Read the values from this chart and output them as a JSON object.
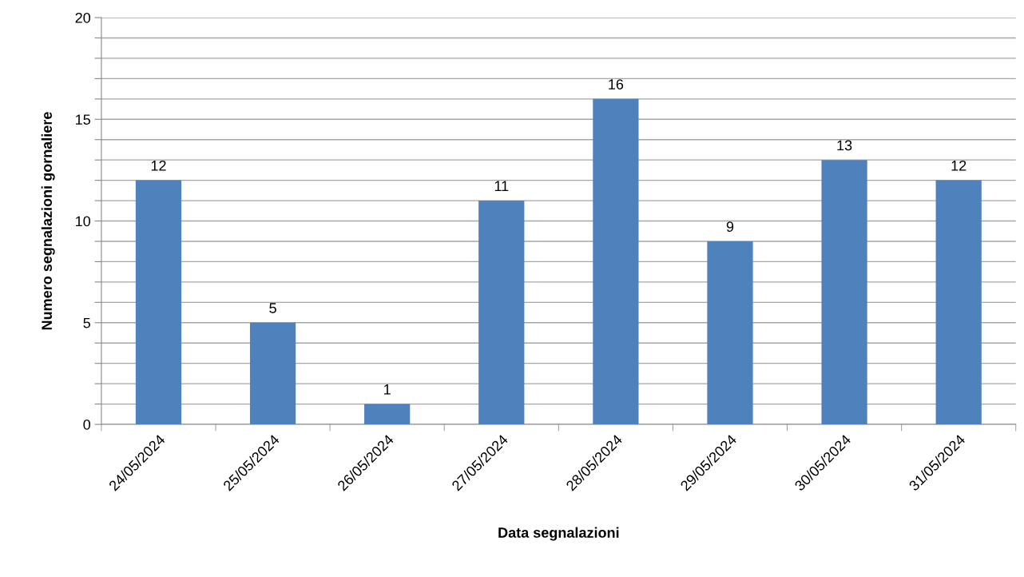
{
  "chart_data": {
    "type": "bar",
    "xlabel": "Data segnalazioni",
    "ylabel": "Numero segnalazioni gornaliere",
    "categories": [
      "24/05/2024",
      "25/05/2024",
      "26/05/2024",
      "27/05/2024",
      "28/05/2024",
      "29/05/2024",
      "30/05/2024",
      "31/05/2024"
    ],
    "values": [
      12,
      5,
      1,
      11,
      16,
      9,
      13,
      12
    ],
    "color": "#4f81bd",
    "ylim": [
      0,
      20
    ],
    "yticks": [
      0,
      {
        "value": 1,
        "label": null
      },
      {
        "value": 2,
        "label": null
      },
      {
        "value": 3,
        "label": null
      },
      {
        "value": 4,
        "label": null
      },
      5,
      {
        "value": 6,
        "label": null
      },
      {
        "value": 7,
        "label": null
      },
      {
        "value": 8,
        "label": null
      },
      {
        "value": 9,
        "label": null
      },
      10,
      {
        "value": 11,
        "label": null
      },
      {
        "value": 12,
        "label": null
      },
      {
        "value": 13,
        "label": null
      },
      {
        "value": 14,
        "label": null
      },
      15,
      {
        "value": 16,
        "label": null
      },
      {
        "value": 17,
        "label": null
      },
      {
        "value": 18,
        "label": null
      },
      {
        "value": 19,
        "label": null
      },
      20
    ],
    "grid": "y",
    "data_labels": true
  }
}
